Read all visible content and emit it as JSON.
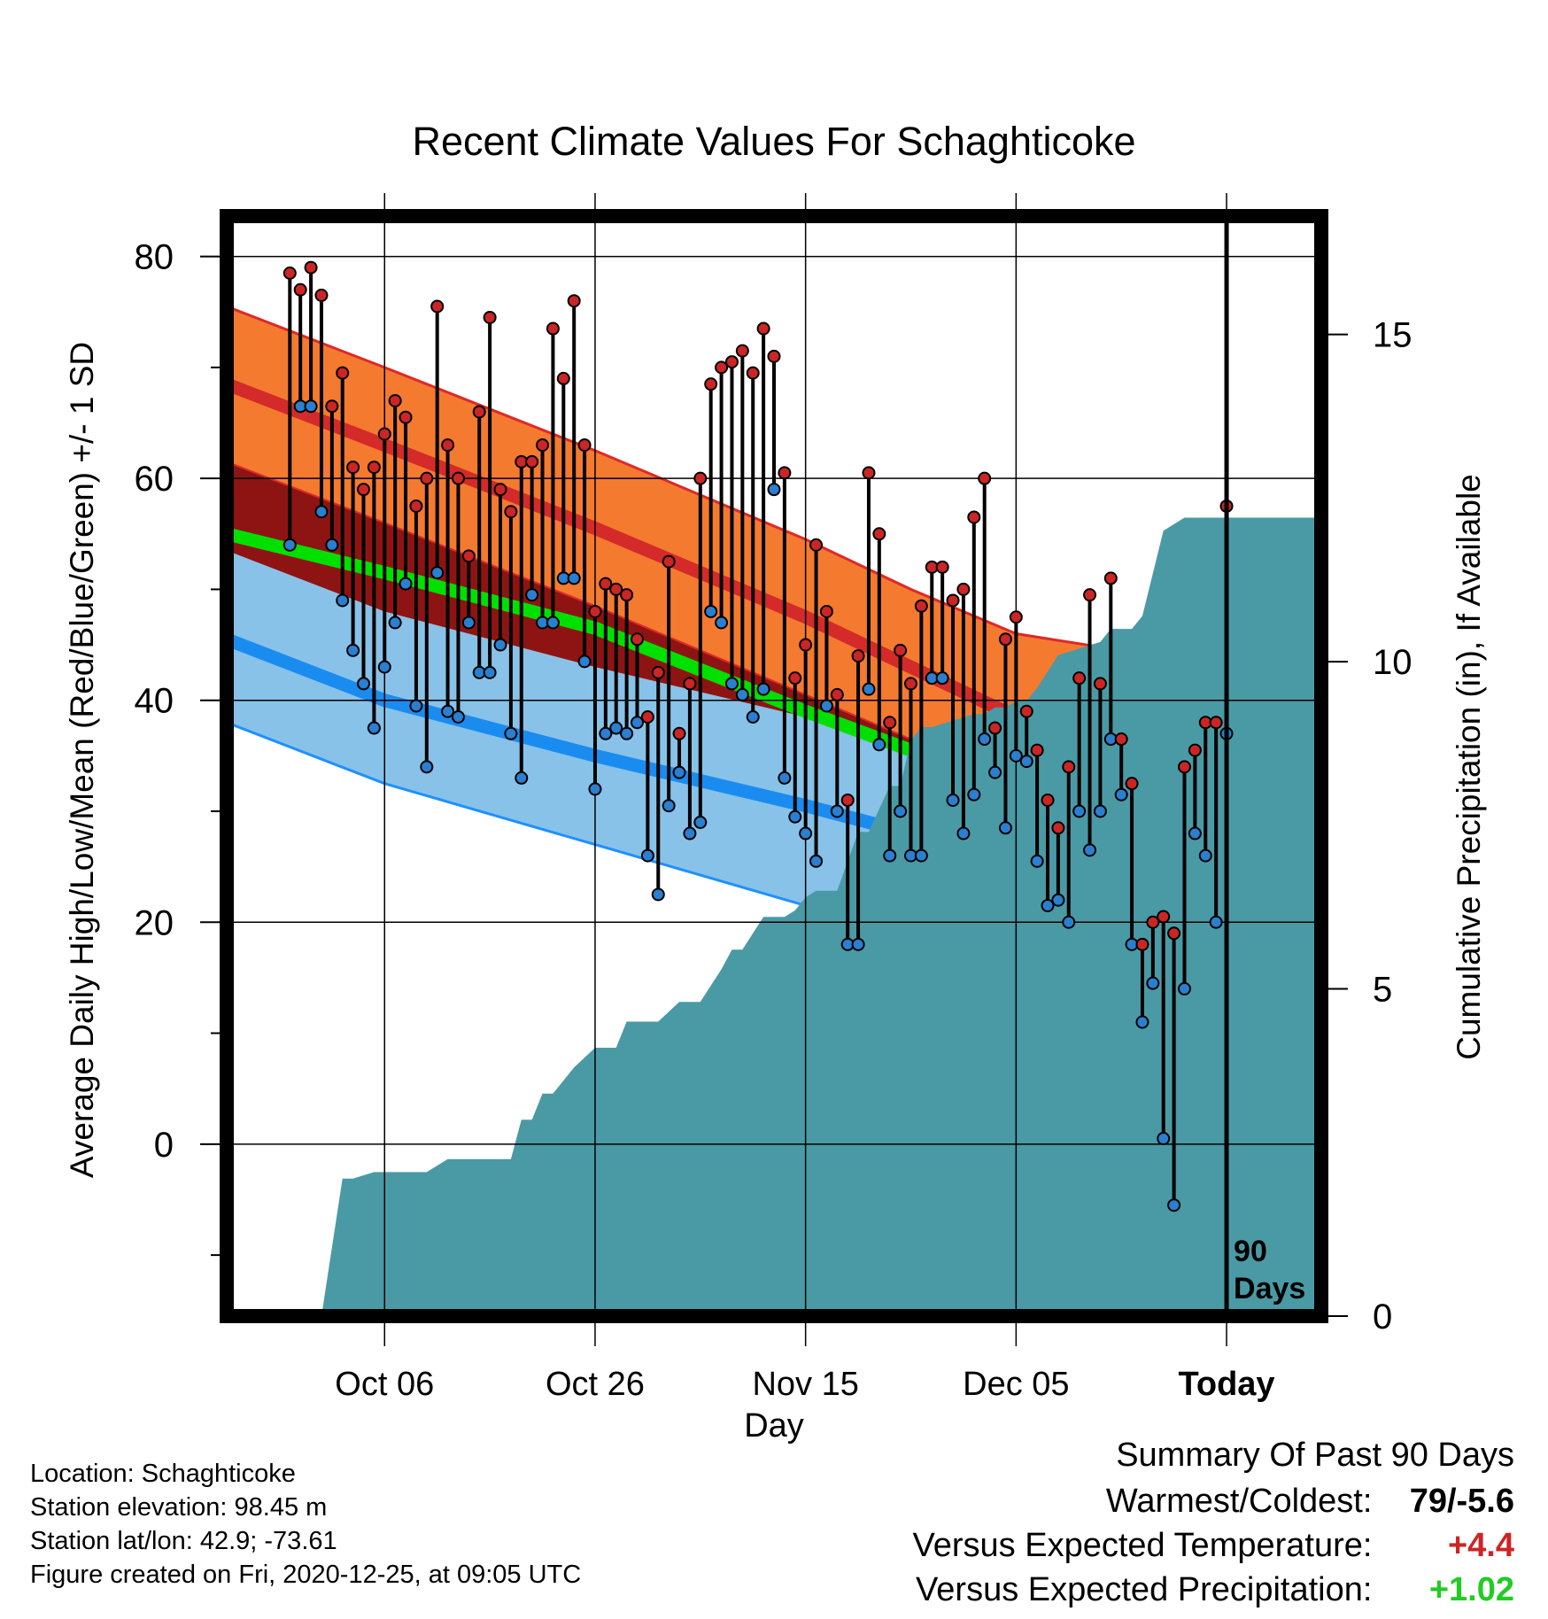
{
  "chart_data": {
    "type": "line",
    "title": "Recent Climate Values For Schaghticoke",
    "xlabel": "Day",
    "ylabel": "Average Daily High/Low/Mean (Red/Blue/Green) +/- 1 SD",
    "ylabel_right": "Cumulative Precipitation (in), If Available",
    "x_range": [
      -95,
      9
    ],
    "ylim": [
      -15.5,
      83
    ],
    "y_ticks": [
      0,
      20,
      40,
      60,
      80
    ],
    "y_minor_step": 10,
    "y2_ticks": [
      0,
      5,
      10,
      15
    ],
    "y2_range": [
      0,
      16.7
    ],
    "x_ticks": [
      {
        "x": -80,
        "label": "Oct 06"
      },
      {
        "x": -60,
        "label": "Oct 26"
      },
      {
        "x": -40,
        "label": "Nov 15"
      },
      {
        "x": -20,
        "label": "Dec 05"
      },
      {
        "x": 0,
        "label": "Today"
      }
    ],
    "today_marker": {
      "x": 0,
      "label_line1": "90",
      "label_line2": "Days"
    },
    "grid": true,
    "colors": {
      "high_band": "#f47a30",
      "high_mean": "#d42a2a",
      "high_band_edge": "#e02828",
      "low_band": "#88c2e8",
      "low_mean": "#1a8cf0",
      "low_band_edge": "#1e90ff",
      "mean_line": "#00e000",
      "overlap": "#8e1414",
      "precip": "#4a9aa5",
      "high_point": "#cc2525",
      "low_point": "#2a7fd0",
      "positive_temp": "#cc2525",
      "positive_precip": "#22cc22"
    },
    "normals_x": [
      -95,
      -80,
      -60,
      -40,
      -30,
      -20,
      -10,
      0,
      9
    ],
    "normal_high": [
      68.5,
      63,
      55.5,
      47.5,
      43,
      38.5,
      35,
      32.5,
      31.5
    ],
    "normal_high_upper": [
      75.5,
      70,
      62.5,
      54.5,
      50,
      46,
      44.5,
      43,
      42
    ],
    "normal_high_lower": [
      61.5,
      56,
      48.5,
      40.5,
      36.5,
      32,
      28.5,
      26,
      25
    ],
    "normal_low": [
      45.5,
      40,
      35,
      30.5,
      28,
      24.5,
      20,
      15.5,
      12.5
    ],
    "normal_low_upper": [
      53.5,
      48,
      43,
      38.5,
      35,
      31.5,
      28,
      23.5,
      20.5
    ],
    "normal_low_lower": [
      38,
      32.5,
      27,
      21.5,
      17,
      12,
      7,
      2.5,
      0
    ],
    "normal_mean": [
      55,
      51.5,
      46.5,
      39,
      35.5,
      31.5,
      27.5,
      23.5,
      20.5
    ],
    "daily_start_x": -89,
    "daily_high": [
      78.5,
      77,
      79,
      76.5,
      66.5,
      69.5,
      61,
      59,
      61,
      64,
      67,
      65.5,
      57.5,
      60,
      75.5,
      63,
      60,
      53,
      66,
      74.5,
      59,
      57,
      61.5,
      61.5,
      63,
      73.5,
      69,
      76,
      63,
      48,
      50.5,
      50,
      49.5,
      45.5,
      38.5,
      42.5,
      52.5,
      37,
      41.5,
      60,
      68.5,
      70,
      70.5,
      71.5,
      69.5,
      73.5,
      71,
      60.5,
      42,
      45,
      54,
      48,
      40.5,
      31,
      44,
      60.5,
      55,
      38,
      44.5,
      41.5,
      48.5,
      52,
      52,
      49,
      50,
      56.5,
      60,
      37.5,
      45.5,
      47.5,
      39,
      35.5,
      31,
      28.5,
      34,
      42,
      49.5,
      41.5,
      51,
      36.5,
      32.5,
      18,
      20,
      20.5,
      19,
      34,
      35.5,
      38,
      38,
      57.5
    ],
    "daily_low": [
      54,
      66.5,
      66.5,
      57,
      54,
      49,
      44.5,
      41.5,
      37.5,
      43,
      47,
      50.5,
      39.5,
      34,
      51.5,
      39,
      38.5,
      47,
      42.5,
      42.5,
      45,
      37,
      33,
      49.5,
      47,
      47,
      51,
      51,
      43.5,
      32,
      37,
      37.5,
      37,
      38,
      26,
      22.5,
      30.5,
      33.5,
      28,
      29,
      48,
      47,
      41.5,
      40.5,
      38.5,
      41,
      59,
      33,
      29.5,
      28,
      25.5,
      39.5,
      30,
      18,
      18,
      41,
      36,
      26,
      30,
      26,
      26,
      42,
      42,
      31,
      28,
      31.5,
      36.5,
      33.5,
      28.5,
      35,
      34.5,
      25.5,
      21.5,
      22,
      20,
      30,
      26.5,
      30,
      36.5,
      31.5,
      18,
      11,
      14.5,
      0.5,
      -5.5,
      14,
      28,
      26,
      20,
      37
    ],
    "precip_x": [
      -92,
      -91,
      -90,
      -89,
      -88,
      -86,
      -84,
      -83,
      -81,
      -80,
      -79,
      -78,
      -76,
      -74,
      -73,
      -71,
      -70,
      -68,
      -67,
      -66,
      -65,
      -64,
      -62,
      -60,
      -58,
      -57,
      -56,
      -55,
      -54,
      -52,
      -50,
      -48,
      -47,
      -46,
      -44,
      -42,
      -41,
      -40,
      -39,
      -37,
      -35,
      -34,
      -32,
      -31,
      -30,
      -29,
      -28,
      -26,
      -24,
      -23,
      -22,
      -21,
      -20,
      -19,
      -18,
      -16,
      -14,
      -12,
      -11,
      -10,
      -9,
      -8,
      -6,
      -4,
      -2,
      0,
      2,
      4,
      6,
      9
    ],
    "precip_cum": [
      0,
      0,
      0,
      0,
      0,
      0,
      2.1,
      2.1,
      2.2,
      2.2,
      2.2,
      2.2,
      2.2,
      2.4,
      2.4,
      2.4,
      2.4,
      2.4,
      3,
      3,
      3.4,
      3.4,
      3.8,
      4.1,
      4.1,
      4.5,
      4.5,
      4.5,
      4.5,
      4.8,
      4.8,
      5.3,
      5.6,
      5.6,
      6.1,
      6.1,
      6.2,
      6.4,
      6.5,
      6.5,
      7.4,
      7.4,
      8.1,
      8.1,
      8.8,
      9,
      9,
      9.1,
      9.2,
      9.2,
      9.3,
      9.3,
      9.4,
      9.4,
      9.6,
      10.1,
      10.2,
      10.3,
      10.5,
      10.5,
      10.5,
      10.7,
      12,
      12.2,
      12.2,
      12.2,
      12.2,
      12.2,
      12.2,
      12.2
    ]
  },
  "footer": {
    "location": "Location: Schaghticoke",
    "elevation": "Station elevation: 98.45 m",
    "latlon": "Station lat/lon: 42.9; -73.61",
    "created": "Figure created on Fri, 2020-12-25, at 09:05 UTC"
  },
  "summary": {
    "heading": "Summary Of Past 90 Days",
    "warmest_label": "Warmest/Coldest:",
    "warmest_value": "79/-5.6",
    "temp_label": "Versus Expected Temperature:",
    "temp_value": "+4.4",
    "precip_label": "Versus Expected Precipitation:",
    "precip_value": "+1.02"
  }
}
